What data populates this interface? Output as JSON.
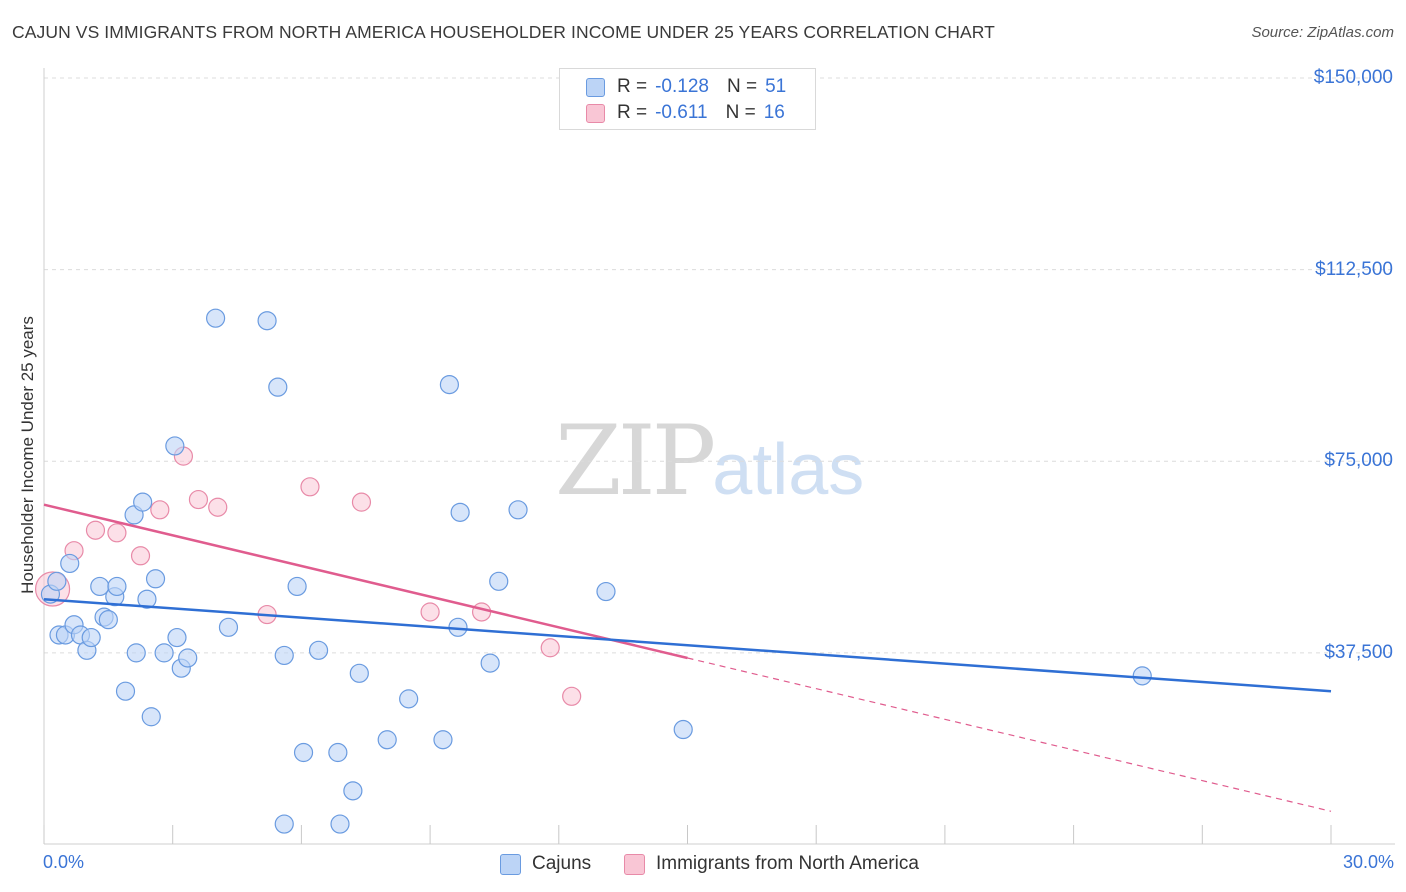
{
  "header": {
    "title": "CAJUN VS IMMIGRANTS FROM NORTH AMERICA HOUSEHOLDER INCOME UNDER 25 YEARS CORRELATION CHART",
    "source": "Source: ZipAtlas.com"
  },
  "watermark": {
    "zip": "ZIP",
    "atlas": "atlas"
  },
  "legend": {
    "rows": [
      {
        "r_label": "R =",
        "r_value": "-0.128",
        "n_label": "N =",
        "n_value": "51",
        "fill": "#bcd4f6",
        "stroke": "#6a9be0"
      },
      {
        "r_label": "R =",
        "r_value": "-0.611",
        "n_label": "N =",
        "n_value": "16",
        "fill": "#f9c6d5",
        "stroke": "#e88aa8"
      }
    ]
  },
  "bottom_legend": {
    "cajuns": "Cajuns",
    "immigrants": "Immigrants from North America"
  },
  "colors": {
    "blue_fill": "#bcd4f6",
    "blue_stroke": "#6a9be0",
    "blue_line": "#2f6fd4",
    "pink_fill": "#f9c6d5",
    "pink_stroke": "#e88aa8",
    "pink_line": "#e05c8e",
    "axis_text": "#3a74d6",
    "grid": "#dcdcdc"
  },
  "chart_data": {
    "type": "scatter",
    "title": "CAJUN VS IMMIGRANTS FROM NORTH AMERICA HOUSEHOLDER INCOME UNDER 25 YEARS CORRELATION CHART",
    "xlabel": "",
    "ylabel": "Householder Income Under 25 years",
    "xlim": [
      0,
      30
    ],
    "ylim": [
      0,
      155000
    ],
    "x_tick_labels": [
      "0.0%",
      "30.0%"
    ],
    "y_ticks": [
      37500,
      75000,
      112500,
      150000
    ],
    "y_tick_labels": [
      "$37,500",
      "$75,000",
      "$112,500",
      "$150,000"
    ],
    "grid": true,
    "series": [
      {
        "name": "Cajuns",
        "r": -0.128,
        "n": 51,
        "points": [
          [
            0.15,
            49000
          ],
          [
            0.3,
            51500
          ],
          [
            0.35,
            41000
          ],
          [
            0.5,
            41000
          ],
          [
            0.6,
            55000
          ],
          [
            0.7,
            43000
          ],
          [
            0.85,
            41000
          ],
          [
            1.0,
            38000
          ],
          [
            1.1,
            40500
          ],
          [
            1.3,
            50500
          ],
          [
            1.4,
            44500
          ],
          [
            1.5,
            44000
          ],
          [
            1.65,
            48500
          ],
          [
            1.7,
            50500
          ],
          [
            1.9,
            30000
          ],
          [
            2.1,
            64500
          ],
          [
            2.15,
            37500
          ],
          [
            2.3,
            67000
          ],
          [
            2.4,
            48000
          ],
          [
            2.5,
            25000
          ],
          [
            2.6,
            52000
          ],
          [
            2.8,
            37500
          ],
          [
            3.05,
            78000
          ],
          [
            3.1,
            40500
          ],
          [
            3.2,
            34500
          ],
          [
            3.35,
            36500
          ],
          [
            4.0,
            103000
          ],
          [
            4.3,
            42500
          ],
          [
            5.2,
            102500
          ],
          [
            5.45,
            89500
          ],
          [
            5.6,
            4000
          ],
          [
            5.6,
            37000
          ],
          [
            5.9,
            50500
          ],
          [
            6.05,
            18000
          ],
          [
            6.4,
            38000
          ],
          [
            6.85,
            18000
          ],
          [
            6.9,
            4000
          ],
          [
            7.2,
            10500
          ],
          [
            7.35,
            33500
          ],
          [
            8.0,
            20500
          ],
          [
            8.5,
            28500
          ],
          [
            9.3,
            20500
          ],
          [
            9.45,
            90000
          ],
          [
            9.65,
            42500
          ],
          [
            9.7,
            65000
          ],
          [
            10.4,
            35500
          ],
          [
            10.6,
            51500
          ],
          [
            11.05,
            65500
          ],
          [
            13.1,
            49500
          ],
          [
            14.9,
            22500
          ],
          [
            25.6,
            33000
          ]
        ],
        "trend": {
          "x": [
            0,
            30
          ],
          "y": [
            48000,
            30000
          ]
        }
      },
      {
        "name": "Immigrants from North America",
        "r": -0.611,
        "n": 16,
        "points": [
          [
            0.2,
            50000
          ],
          [
            0.7,
            57500
          ],
          [
            1.2,
            61500
          ],
          [
            1.7,
            61000
          ],
          [
            2.25,
            56500
          ],
          [
            2.7,
            65500
          ],
          [
            3.25,
            76000
          ],
          [
            3.6,
            67500
          ],
          [
            4.05,
            66000
          ],
          [
            5.2,
            45000
          ],
          [
            6.2,
            70000
          ],
          [
            7.4,
            67000
          ],
          [
            9.0,
            45500
          ],
          [
            10.2,
            45500
          ],
          [
            11.8,
            38500
          ],
          [
            12.3,
            29000
          ]
        ],
        "trend": {
          "x": [
            0,
            15
          ],
          "y": [
            66500,
            36500
          ]
        },
        "trend_extension": {
          "x": [
            15,
            30
          ],
          "y": [
            36500,
            6500
          ]
        }
      }
    ]
  }
}
